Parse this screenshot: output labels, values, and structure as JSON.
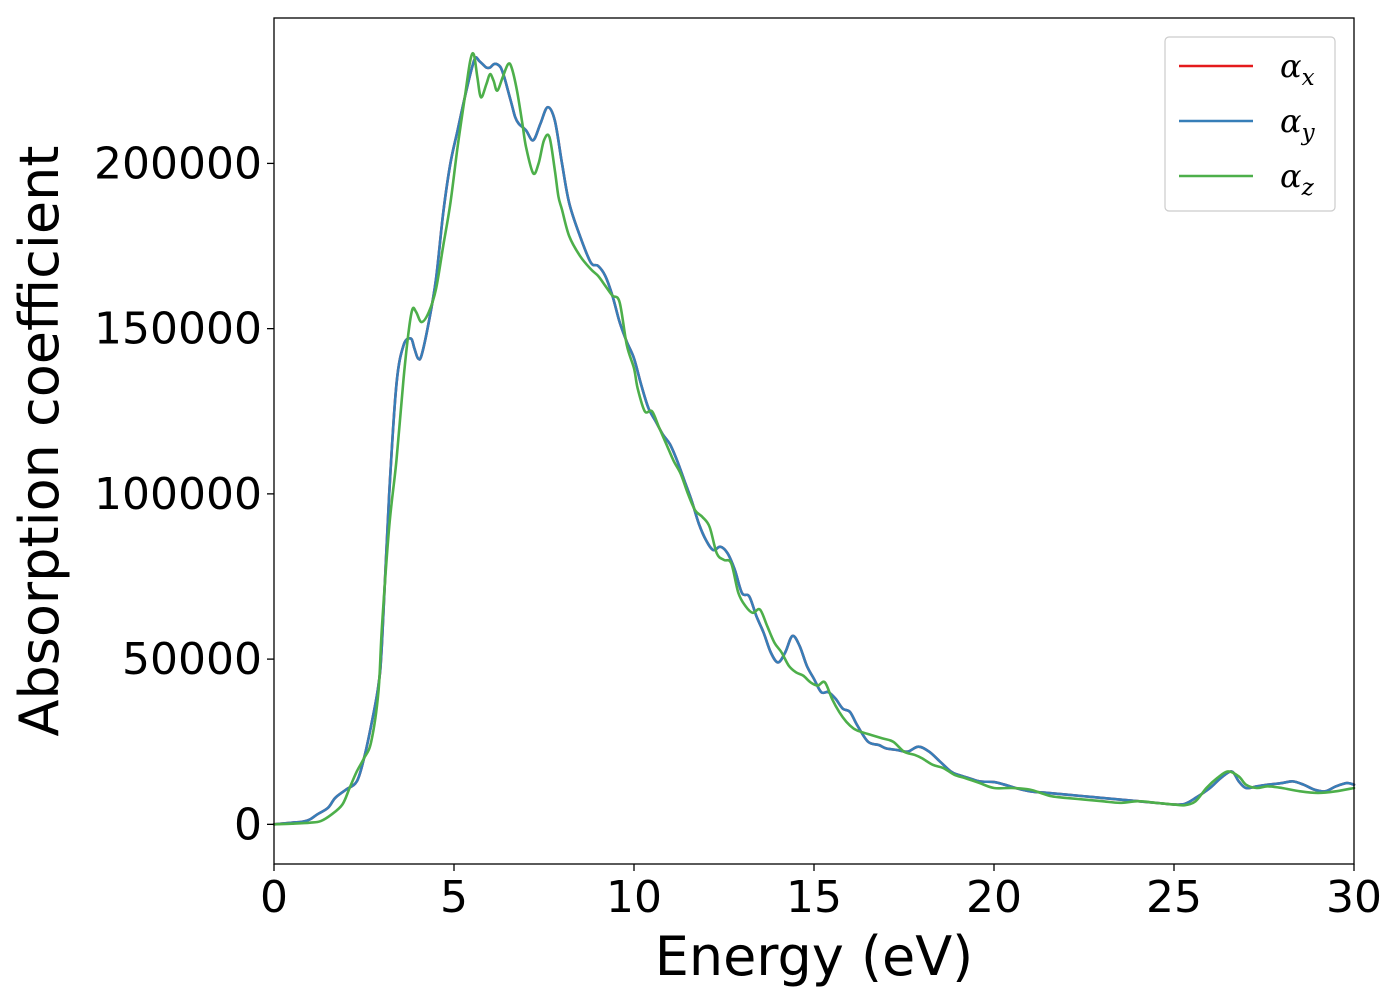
{
  "chart_data": {
    "type": "line",
    "xlabel": "Energy (eV)",
    "ylabel": "Absorption coefficient",
    "xlim": [
      0,
      30
    ],
    "ylim": [
      -12000,
      244000
    ],
    "xticks": [
      0,
      5,
      10,
      15,
      20,
      25,
      30
    ],
    "xtick_labels": [
      "0",
      "5",
      "10",
      "15",
      "20",
      "25",
      "30"
    ],
    "yticks": [
      0,
      50000,
      100000,
      150000,
      200000
    ],
    "ytick_labels": [
      "0",
      "50000",
      "100000",
      "150000",
      "200000"
    ],
    "grid": false,
    "legend_position": "top-right",
    "series": [
      {
        "name": "αx",
        "legend_base": "α",
        "legend_sub": "x",
        "color": "#e41a1c",
        "x": [
          0,
          0.5,
          0.8,
          1,
          1.2,
          1.5,
          1.7,
          2,
          2.3,
          2.5,
          2.7,
          2.9,
          3,
          3.2,
          3.4,
          3.6,
          3.8,
          3.9,
          4,
          4.1,
          4.3,
          4.5,
          4.7,
          4.9,
          5.1,
          5.3,
          5.5,
          5.6,
          5.7,
          5.8,
          5.9,
          6,
          6.1,
          6.2,
          6.3,
          6.4,
          6.5,
          6.6,
          6.7,
          6.8,
          7,
          7.2,
          7.4,
          7.6,
          7.8,
          8,
          8.2,
          8.5,
          8.8,
          9,
          9.2,
          9.4,
          9.6,
          9.8,
          10,
          10.2,
          10.4,
          10.6,
          10.8,
          11,
          11.2,
          11.4,
          11.6,
          11.8,
          12,
          12.2,
          12.4,
          12.6,
          12.8,
          13,
          13.2,
          13.4,
          13.6,
          13.8,
          14,
          14.2,
          14.4,
          14.6,
          14.8,
          15,
          15.2,
          15.4,
          15.6,
          15.8,
          16,
          16.2,
          16.5,
          16.8,
          17,
          17.3,
          17.6,
          17.9,
          18.2,
          18.5,
          18.8,
          19,
          19.3,
          19.6,
          20,
          20.3,
          20.6,
          21,
          21.5,
          22,
          22.5,
          23,
          23.5,
          24,
          24.5,
          25,
          25.3,
          25.6,
          26,
          26.3,
          26.6,
          26.8,
          27,
          27.3,
          27.6,
          28,
          28.3,
          28.6,
          28.9,
          29.2,
          29.5,
          29.8,
          30
        ],
        "y": [
          0,
          500,
          800,
          1500,
          3000,
          5000,
          8000,
          10500,
          13000,
          20000,
          30000,
          42000,
          55000,
          100000,
          133000,
          145000,
          147000,
          144000,
          141000,
          142000,
          152000,
          165000,
          185000,
          200000,
          210000,
          220000,
          229000,
          232000,
          231000,
          230000,
          229000,
          229000,
          230000,
          230000,
          229000,
          226000,
          222000,
          218000,
          214000,
          212000,
          210000,
          207000,
          212000,
          217000,
          213000,
          200000,
          188000,
          178000,
          170000,
          169000,
          166000,
          160000,
          152000,
          146000,
          141000,
          133000,
          126000,
          122000,
          118000,
          115000,
          110000,
          104000,
          98000,
          91000,
          86000,
          83000,
          84000,
          82000,
          77000,
          70000,
          69000,
          63000,
          58000,
          52000,
          49000,
          52000,
          57000,
          54000,
          48000,
          44000,
          40000,
          40000,
          38000,
          35000,
          34000,
          30000,
          25000,
          24000,
          23000,
          22500,
          22000,
          23500,
          22000,
          19000,
          16000,
          15000,
          14000,
          13000,
          12800,
          12000,
          11000,
          10000,
          9500,
          9000,
          8500,
          8000,
          7500,
          7000,
          6500,
          6000,
          6200,
          8000,
          11000,
          14000,
          16000,
          13000,
          11000,
          11500,
          12000,
          12500,
          13000,
          12000,
          10500,
          10000,
          11500,
          12500,
          12000
        ]
      },
      {
        "name": "αy",
        "legend_base": "α",
        "legend_sub": "y",
        "color": "#377eb8",
        "x": [
          0,
          0.5,
          0.8,
          1,
          1.2,
          1.5,
          1.7,
          2,
          2.3,
          2.5,
          2.7,
          2.9,
          3,
          3.2,
          3.4,
          3.6,
          3.8,
          3.9,
          4,
          4.1,
          4.3,
          4.5,
          4.7,
          4.9,
          5.1,
          5.3,
          5.5,
          5.6,
          5.7,
          5.8,
          5.9,
          6,
          6.1,
          6.2,
          6.3,
          6.4,
          6.5,
          6.6,
          6.7,
          6.8,
          7,
          7.2,
          7.4,
          7.6,
          7.8,
          8,
          8.2,
          8.5,
          8.8,
          9,
          9.2,
          9.4,
          9.6,
          9.8,
          10,
          10.2,
          10.4,
          10.6,
          10.8,
          11,
          11.2,
          11.4,
          11.6,
          11.8,
          12,
          12.2,
          12.4,
          12.6,
          12.8,
          13,
          13.2,
          13.4,
          13.6,
          13.8,
          14,
          14.2,
          14.4,
          14.6,
          14.8,
          15,
          15.2,
          15.4,
          15.6,
          15.8,
          16,
          16.2,
          16.5,
          16.8,
          17,
          17.3,
          17.6,
          17.9,
          18.2,
          18.5,
          18.8,
          19,
          19.3,
          19.6,
          20,
          20.3,
          20.6,
          21,
          21.5,
          22,
          22.5,
          23,
          23.5,
          24,
          24.5,
          25,
          25.3,
          25.6,
          26,
          26.3,
          26.6,
          26.8,
          27,
          27.3,
          27.6,
          28,
          28.3,
          28.6,
          28.9,
          29.2,
          29.5,
          29.8,
          30
        ],
        "y": [
          0,
          500,
          800,
          1500,
          3000,
          5000,
          8000,
          10500,
          13000,
          20000,
          30000,
          42000,
          55000,
          100000,
          133000,
          145000,
          147000,
          144000,
          141000,
          142000,
          152000,
          165000,
          185000,
          200000,
          210000,
          220000,
          229000,
          232000,
          231000,
          230000,
          229000,
          229000,
          230000,
          230000,
          229000,
          226000,
          222000,
          218000,
          214000,
          212000,
          210000,
          207000,
          212000,
          217000,
          213000,
          200000,
          188000,
          178000,
          170000,
          169000,
          166000,
          160000,
          152000,
          146000,
          141000,
          133000,
          126000,
          122000,
          118000,
          115000,
          110000,
          104000,
          98000,
          91000,
          86000,
          83000,
          84000,
          82000,
          77000,
          70000,
          69000,
          63000,
          58000,
          52000,
          49000,
          52000,
          57000,
          54000,
          48000,
          44000,
          40000,
          40000,
          38000,
          35000,
          34000,
          30000,
          25000,
          24000,
          23000,
          22500,
          22000,
          23500,
          22000,
          19000,
          16000,
          15000,
          14000,
          13000,
          12800,
          12000,
          11000,
          10000,
          9500,
          9000,
          8500,
          8000,
          7500,
          7000,
          6500,
          6000,
          6200,
          8000,
          11000,
          14000,
          16000,
          13000,
          11000,
          11500,
          12000,
          12500,
          13000,
          12000,
          10500,
          10000,
          11500,
          12500,
          12000
        ]
      },
      {
        "name": "αz",
        "legend_base": "α",
        "legend_sub": "z",
        "color": "#4daf4a",
        "x": [
          0,
          0.5,
          1,
          1.3,
          1.6,
          1.9,
          2.1,
          2.3,
          2.5,
          2.7,
          2.9,
          3,
          3.2,
          3.4,
          3.6,
          3.75,
          3.85,
          3.95,
          4.1,
          4.3,
          4.5,
          4.7,
          4.9,
          5.1,
          5.3,
          5.45,
          5.55,
          5.65,
          5.75,
          5.9,
          6,
          6.1,
          6.2,
          6.35,
          6.5,
          6.6,
          6.75,
          6.9,
          7,
          7.2,
          7.35,
          7.5,
          7.65,
          7.8,
          7.9,
          8,
          8.2,
          8.5,
          8.8,
          9,
          9.2,
          9.4,
          9.6,
          9.8,
          10,
          10.1,
          10.3,
          10.5,
          10.7,
          10.9,
          11.1,
          11.3,
          11.5,
          11.7,
          11.9,
          12.1,
          12.3,
          12.5,
          12.7,
          12.9,
          13.1,
          13.3,
          13.5,
          13.7,
          13.9,
          14.1,
          14.3,
          14.5,
          14.7,
          14.9,
          15.1,
          15.3,
          15.5,
          15.7,
          15.9,
          16.1,
          16.3,
          16.6,
          16.9,
          17.2,
          17.5,
          17.8,
          18,
          18.3,
          18.6,
          18.9,
          19.2,
          19.6,
          20,
          20.5,
          21,
          21.3,
          21.6,
          22,
          22.5,
          23,
          23.5,
          24,
          24.5,
          25,
          25.3,
          25.6,
          25.9,
          26.2,
          26.5,
          26.8,
          27,
          27.3,
          27.6,
          28,
          28.5,
          29,
          29.5,
          30
        ],
        "y": [
          0,
          200,
          500,
          1000,
          3000,
          6000,
          11000,
          16000,
          20000,
          25000,
          40000,
          60000,
          90000,
          110000,
          135000,
          150000,
          156000,
          155000,
          152000,
          155000,
          162000,
          175000,
          188000,
          205000,
          220000,
          231000,
          233000,
          226000,
          220000,
          224000,
          227000,
          225000,
          222000,
          226000,
          230000,
          229000,
          222000,
          212000,
          205000,
          197000,
          200000,
          207000,
          208000,
          198000,
          190000,
          186000,
          178000,
          172000,
          168000,
          166000,
          163000,
          160000,
          158000,
          145000,
          138000,
          132000,
          125000,
          125000,
          120000,
          115000,
          110000,
          106000,
          100000,
          95000,
          93000,
          90000,
          82000,
          80000,
          79000,
          70000,
          66000,
          64000,
          65000,
          60000,
          55000,
          52000,
          48000,
          46000,
          45000,
          43000,
          42000,
          43000,
          38000,
          34000,
          31000,
          29000,
          28000,
          27000,
          26000,
          25000,
          22000,
          21000,
          20000,
          18000,
          17000,
          15000,
          14000,
          12500,
          11000,
          11000,
          10500,
          9500,
          8500,
          8000,
          7500,
          7000,
          6500,
          7000,
          6500,
          6000,
          5800,
          7000,
          11000,
          14000,
          16000,
          14500,
          12000,
          11000,
          11500,
          11000,
          10000,
          9500,
          10000,
          11000
        ]
      }
    ]
  }
}
